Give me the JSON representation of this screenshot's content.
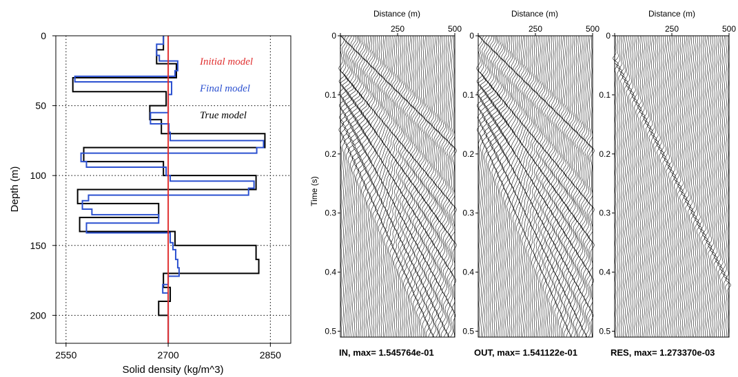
{
  "chart_data": [
    {
      "type": "line",
      "xlabel": "Solid density (kg/m^3)",
      "ylabel": "Depth (m)",
      "xlim": [
        2535,
        2880
      ],
      "ylim": [
        220,
        0
      ],
      "xticks": [
        "2550",
        "2700",
        "2850"
      ],
      "xtick_values": [
        2550,
        2700,
        2850
      ],
      "yticks": [
        "0",
        "50",
        "100",
        "150",
        "200"
      ],
      "ytick_values": [
        0,
        50,
        100,
        150,
        200
      ],
      "grid": true,
      "legend": [
        "Initial model",
        "Final model",
        "True model"
      ],
      "series": [
        {
          "name": "Initial model",
          "color": "#e03030",
          "depth": [
            0,
            220
          ],
          "density": [
            2700,
            2700
          ]
        },
        {
          "name": "True model",
          "color": "#000000",
          "depth": [
            0,
            10,
            20,
            30,
            40,
            50,
            60,
            70,
            80,
            90,
            100,
            110,
            120,
            130,
            140,
            150,
            160,
            170,
            180,
            190,
            200
          ],
          "density": [
            2693,
            2683,
            2712,
            2560,
            2697,
            2673,
            2690,
            2842,
            2576,
            2693,
            2829,
            2567,
            2686,
            2570,
            2710,
            2829,
            2833,
            2693,
            2703,
            2686,
            2700
          ]
        },
        {
          "name": "Final model",
          "color": "#2b50d0",
          "segments": [
            [
              0,
              6,
              2693
            ],
            [
              6,
              14,
              2683
            ],
            [
              14,
              18,
              2687
            ],
            [
              18,
              25,
              2714
            ],
            [
              25,
              29,
              2710
            ],
            [
              29,
              33,
              2563
            ],
            [
              33,
              42,
              2705
            ],
            [
              42,
              48,
              2700
            ],
            [
              48,
              55,
              2700
            ],
            [
              55,
              63,
              2674
            ],
            [
              63,
              69,
              2701
            ],
            [
              69,
              75,
              2703
            ],
            [
              75,
              80,
              2840
            ],
            [
              80,
              84,
              2830
            ],
            [
              84,
              90,
              2572
            ],
            [
              90,
              94,
              2580
            ],
            [
              94,
              100,
              2697
            ],
            [
              100,
              104,
              2703
            ],
            [
              104,
              109,
              2826
            ],
            [
              109,
              114,
              2818
            ],
            [
              114,
              118,
              2583
            ],
            [
              118,
              124,
              2574
            ],
            [
              124,
              128,
              2588
            ],
            [
              128,
              134,
              2686
            ],
            [
              134,
              141,
              2580
            ],
            [
              141,
              148,
              2703
            ],
            [
              148,
              153,
              2707
            ],
            [
              153,
              160,
              2711
            ],
            [
              160,
              166,
              2714
            ],
            [
              166,
              172,
              2716
            ],
            [
              172,
              178,
              2700
            ],
            [
              178,
              184,
              2692
            ],
            [
              184,
              191,
              2700
            ],
            [
              191,
              220,
              2700
            ]
          ]
        }
      ]
    },
    {
      "type": "heatmap",
      "caption": "IN, max= 1.545764e-01",
      "xlabel": "Distance (m)",
      "ylabel": "Time (s)",
      "xlim": [
        0,
        500
      ],
      "ylim": [
        0.51,
        0
      ],
      "xticks": [
        "250",
        "500"
      ],
      "yticks": [
        "0",
        "0.1",
        "0.2",
        "0.3",
        "0.4",
        "0.5"
      ],
      "traces": 60
    },
    {
      "type": "heatmap",
      "caption": "OUT, max= 1.541122e-01",
      "xlabel": "Distance (m)",
      "xlim": [
        0,
        500
      ],
      "ylim": [
        0.51,
        0
      ],
      "xticks": [
        "250",
        "500"
      ],
      "yticks": [
        "0",
        "0.1",
        "0.2",
        "0.3",
        "0.4",
        "0.5"
      ],
      "traces": 60
    },
    {
      "type": "heatmap",
      "caption": "RES, max= 1.273370e-03",
      "xlabel": "Distance (m)",
      "xlim": [
        0,
        500
      ],
      "ylim": [
        0.51,
        0
      ],
      "xticks": [
        "250",
        "500"
      ],
      "yticks": [
        "0",
        "0.1",
        "0.2",
        "0.3",
        "0.4",
        "0.5"
      ],
      "traces": 60
    }
  ],
  "colors": {
    "initial": "#e03030",
    "final": "#2b50d0",
    "true": "#000000"
  }
}
